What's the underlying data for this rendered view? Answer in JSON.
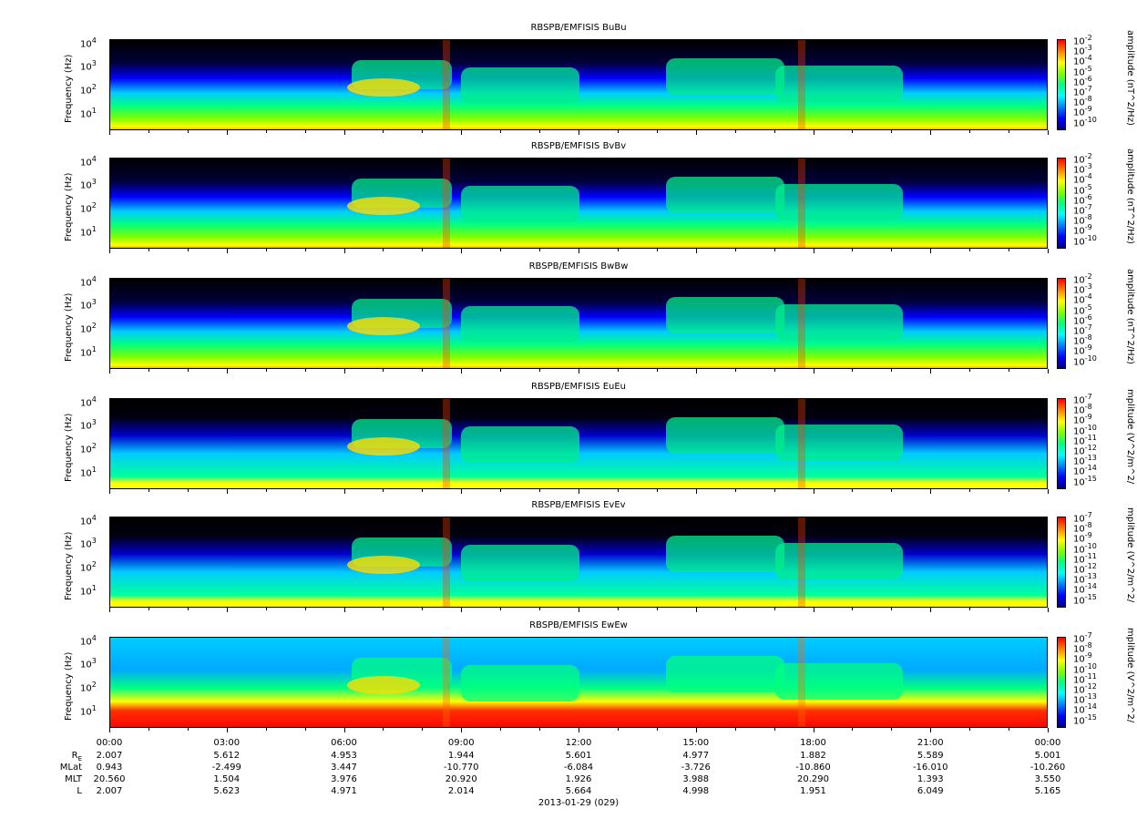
{
  "colors": {
    "spectrum": [
      "#00008b",
      "#0000ff",
      "#0080ff",
      "#00ffff",
      "#00ff80",
      "#80ff00",
      "#ffff00",
      "#ff8000",
      "#ff0000"
    ]
  },
  "panels": [
    {
      "title": "RBSPB/EMFISIS  BuBu",
      "ylabel": "Frequency (Hz)",
      "cb_label": "amplitude (nT^2/Hz)",
      "y_ticks": [
        "10",
        "10",
        "10",
        "10"
      ],
      "y_exps": [
        "4",
        "3",
        "2",
        "1"
      ],
      "cb_ticks": [
        "10",
        "10",
        "10",
        "10",
        "10",
        "10",
        "10",
        "10",
        "10"
      ],
      "cb_exps": [
        "-2",
        "-3",
        "-4",
        "-5",
        "-6",
        "-7",
        "-8",
        "-9",
        "-10"
      ]
    },
    {
      "title": "RBSPB/EMFISIS  BvBv",
      "ylabel": "Frequency (Hz)",
      "cb_label": "amplitude (nT^2/Hz)",
      "y_ticks": [
        "10",
        "10",
        "10",
        "10"
      ],
      "y_exps": [
        "4",
        "3",
        "2",
        "1"
      ],
      "cb_ticks": [
        "10",
        "10",
        "10",
        "10",
        "10",
        "10",
        "10",
        "10",
        "10"
      ],
      "cb_exps": [
        "-2",
        "-3",
        "-4",
        "-5",
        "-6",
        "-7",
        "-8",
        "-9",
        "-10"
      ]
    },
    {
      "title": "RBSPB/EMFISIS  BwBw",
      "ylabel": "Frequency (Hz)",
      "cb_label": "amplitude (nT^2/Hz)",
      "y_ticks": [
        "10",
        "10",
        "10",
        "10"
      ],
      "y_exps": [
        "4",
        "3",
        "2",
        "1"
      ],
      "cb_ticks": [
        "10",
        "10",
        "10",
        "10",
        "10",
        "10",
        "10",
        "10",
        "10"
      ],
      "cb_exps": [
        "-2",
        "-3",
        "-4",
        "-5",
        "-6",
        "-7",
        "-8",
        "-9",
        "-10"
      ]
    },
    {
      "title": "RBSPB/EMFISIS  EuEu",
      "ylabel": "Frequency (Hz)",
      "cb_label": "mplitude (V^2/m^2/",
      "y_ticks": [
        "10",
        "10",
        "10",
        "10"
      ],
      "y_exps": [
        "4",
        "3",
        "2",
        "1"
      ],
      "cb_ticks": [
        "10",
        "10",
        "10",
        "10",
        "10",
        "10",
        "10",
        "10",
        "10"
      ],
      "cb_exps": [
        "-7",
        "-8",
        "-9",
        "-10",
        "-11",
        "-12",
        "-13",
        "-14",
        "-15"
      ]
    },
    {
      "title": "RBSPB/EMFISIS  EvEv",
      "ylabel": "Frequency (Hz)",
      "cb_label": "mplitude (V^2/m^2/",
      "y_ticks": [
        "10",
        "10",
        "10",
        "10"
      ],
      "y_exps": [
        "4",
        "3",
        "2",
        "1"
      ],
      "cb_ticks": [
        "10",
        "10",
        "10",
        "10",
        "10",
        "10",
        "10",
        "10",
        "10"
      ],
      "cb_exps": [
        "-7",
        "-8",
        "-9",
        "-10",
        "-11",
        "-12",
        "-13",
        "-14",
        "-15"
      ]
    },
    {
      "title": "RBSPB/EMFISIS  EwEw",
      "ylabel": "Frequency (Hz)",
      "cb_label": "mplitude (V^2/m^2/",
      "y_ticks": [
        "10",
        "10",
        "10",
        "10"
      ],
      "y_exps": [
        "4",
        "3",
        "2",
        "1"
      ],
      "cb_ticks": [
        "10",
        "10",
        "10",
        "10",
        "10",
        "10",
        "10",
        "10",
        "10"
      ],
      "cb_exps": [
        "-7",
        "-8",
        "-9",
        "-10",
        "-11",
        "-12",
        "-13",
        "-14",
        "-15"
      ]
    }
  ],
  "x_axis": {
    "ticks": [
      "00:00",
      "03:00",
      "06:00",
      "09:00",
      "12:00",
      "15:00",
      "18:00",
      "21:00",
      "00:00"
    ],
    "date": "2013-01-29 (029)"
  },
  "ephemeris": {
    "rows": [
      {
        "label": "R",
        "sub": "E",
        "values": [
          "2.007",
          "5.612",
          "4.953",
          "1.944",
          "5.601",
          "4.977",
          "1.882",
          "5.589",
          "5.001"
        ]
      },
      {
        "label": "MLat",
        "sub": "",
        "values": [
          "0.943",
          "-2.499",
          "3.447",
          "-10.770",
          "-6.084",
          "-3.726",
          "-10.860",
          "-16.010",
          "-10.260"
        ]
      },
      {
        "label": "MLT",
        "sub": "",
        "values": [
          "20.560",
          "1.504",
          "3.976",
          "20.920",
          "1.926",
          "3.988",
          "20.290",
          "1.393",
          "3.550"
        ]
      },
      {
        "label": "L",
        "sub": "",
        "values": [
          "2.007",
          "5.623",
          "4.971",
          "2.014",
          "5.664",
          "4.998",
          "1.951",
          "6.049",
          "5.165"
        ]
      }
    ]
  },
  "chart_data": [
    {
      "type": "heatmap",
      "title": "RBSPB/EMFISIS  BuBu",
      "ylabel": "Frequency (Hz)",
      "y_scale": "log",
      "colorbar_label": "amplitude (nT^2/Hz)",
      "colorbar_range": [
        "1e-10",
        "1e-2"
      ]
    },
    {
      "type": "heatmap",
      "title": "RBSPB/EMFISIS  BvBv",
      "ylabel": "Frequency (Hz)",
      "y_scale": "log",
      "colorbar_label": "amplitude (nT^2/Hz)",
      "colorbar_range": [
        "1e-10",
        "1e-2"
      ]
    },
    {
      "type": "heatmap",
      "title": "RBSPB/EMFISIS  BwBw",
      "ylabel": "Frequency (Hz)",
      "y_scale": "log",
      "colorbar_label": "amplitude (nT^2/Hz)",
      "colorbar_range": [
        "1e-10",
        "1e-2"
      ]
    },
    {
      "type": "heatmap",
      "title": "RBSPB/EMFISIS  EuEu",
      "ylabel": "Frequency (Hz)",
      "y_scale": "log",
      "colorbar_label": "mplitude (V^2/m^2/",
      "colorbar_range": [
        "1e-15",
        "1e-7"
      ]
    },
    {
      "type": "heatmap",
      "title": "RBSPB/EMFISIS  EvEv",
      "ylabel": "Frequency (Hz)",
      "y_scale": "log",
      "colorbar_label": "mplitude (V^2/m^2/",
      "colorbar_range": [
        "1e-15",
        "1e-7"
      ]
    },
    {
      "type": "heatmap",
      "title": "RBSPB/EMFISIS  EwEw",
      "ylabel": "Frequency (Hz)",
      "y_scale": "log",
      "colorbar_label": "mplitude (V^2/m^2/",
      "colorbar_range": [
        "1e-15",
        "1e-7"
      ]
    }
  ]
}
